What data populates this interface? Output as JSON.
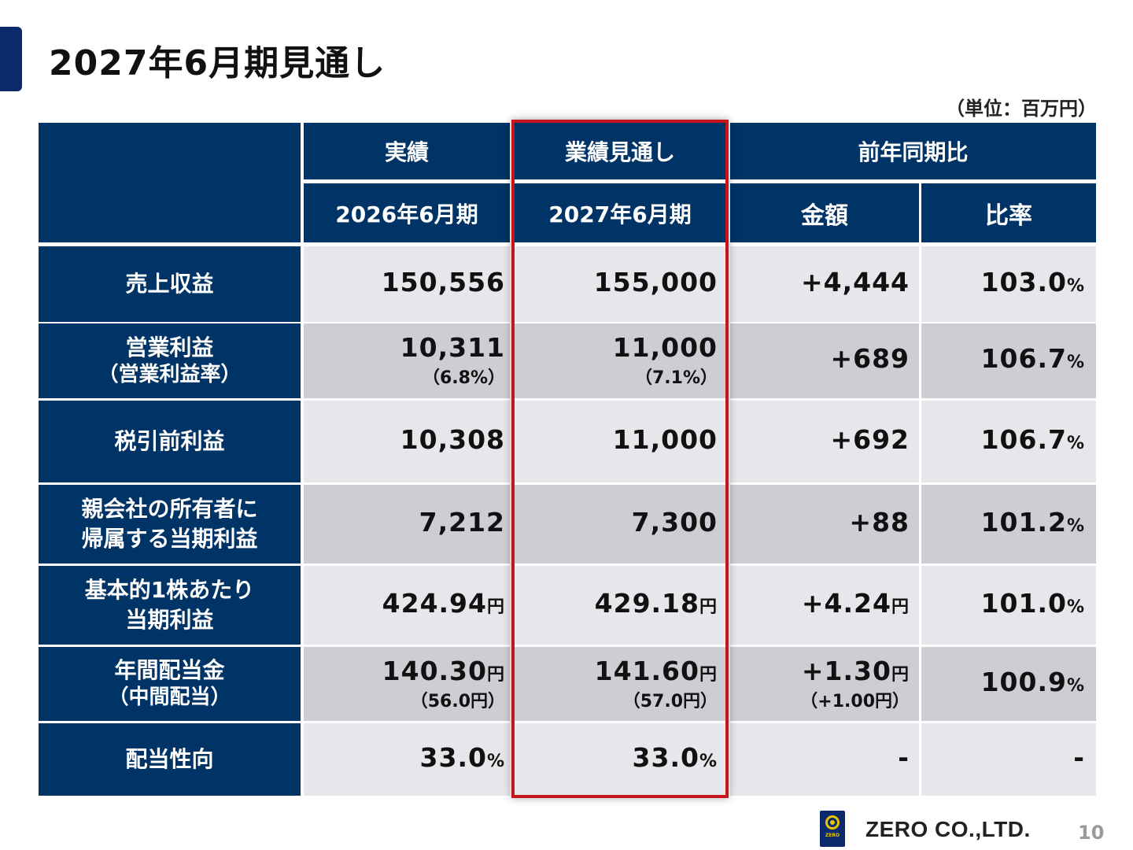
{
  "title": "2027年6月期見通し",
  "unit": "（単位：百万円）",
  "headers": {
    "actual_group": "実績",
    "forecast_group": "業績見通し",
    "yoy_group": "前年同期比",
    "actual_period": "2026年6月期",
    "forecast_period": "2027年6月期",
    "amount": "金額",
    "ratio": "比率"
  },
  "rows": [
    {
      "label1": "売上収益",
      "label2": "",
      "actual": "150,556",
      "actual_unit": "",
      "actual_sub": "",
      "forecast": "155,000",
      "forecast_unit": "",
      "forecast_sub": "",
      "amount": "+4,444",
      "amount_unit": "",
      "amount_sub": "",
      "ratio": "103.0",
      "ratio_unit": "%"
    },
    {
      "label1": "営業利益",
      "label2": "（営業利益率）",
      "actual": "10,311",
      "actual_unit": "",
      "actual_sub": "（6.8%）",
      "forecast": "11,000",
      "forecast_unit": "",
      "forecast_sub": "（7.1%）",
      "amount": "+689",
      "amount_unit": "",
      "amount_sub": "",
      "ratio": "106.7",
      "ratio_unit": "%"
    },
    {
      "label1": "税引前利益",
      "label2": "",
      "actual": "10,308",
      "actual_unit": "",
      "actual_sub": "",
      "forecast": "11,000",
      "forecast_unit": "",
      "forecast_sub": "",
      "amount": "+692",
      "amount_unit": "",
      "amount_sub": "",
      "ratio": "106.7",
      "ratio_unit": "%"
    },
    {
      "label1": "親会社の所有者に",
      "label2": "帰属する当期利益",
      "actual": "7,212",
      "actual_unit": "",
      "actual_sub": "",
      "forecast": "7,300",
      "forecast_unit": "",
      "forecast_sub": "",
      "amount": "+88",
      "amount_unit": "",
      "amount_sub": "",
      "ratio": "101.2",
      "ratio_unit": "%"
    },
    {
      "label1": "基本的1株あたり",
      "label2": "当期利益",
      "actual": "424.94",
      "actual_unit": "円",
      "actual_sub": "",
      "forecast": "429.18",
      "forecast_unit": "円",
      "forecast_sub": "",
      "amount": "+4.24",
      "amount_unit": "円",
      "amount_sub": "",
      "ratio": "101.0",
      "ratio_unit": "%"
    },
    {
      "label1": "年間配当金",
      "label2": "（中間配当）",
      "actual": "140.30",
      "actual_unit": "円",
      "actual_sub": "（56.0円）",
      "forecast": "141.60",
      "forecast_unit": "円",
      "forecast_sub": "（57.0円）",
      "amount": "+1.30",
      "amount_unit": "円",
      "amount_sub": "（+1.00円）",
      "ratio": "100.9",
      "ratio_unit": "%"
    },
    {
      "label1": "配当性向",
      "label2": "",
      "actual": "33.0",
      "actual_unit": "%",
      "actual_sub": "",
      "forecast": "33.0",
      "forecast_unit": "%",
      "forecast_sub": "",
      "amount": "-",
      "amount_unit": "",
      "amount_sub": "",
      "ratio": "-",
      "ratio_unit": ""
    }
  ],
  "logo_text": "ZERO",
  "company": "ZERO CO.,LTD.",
  "page_number": "10",
  "colors": {
    "header_navy": "#003366",
    "highlight_red": "#c4161c",
    "row_light": "#e6e7ea",
    "row_dark": "#cdced3"
  }
}
